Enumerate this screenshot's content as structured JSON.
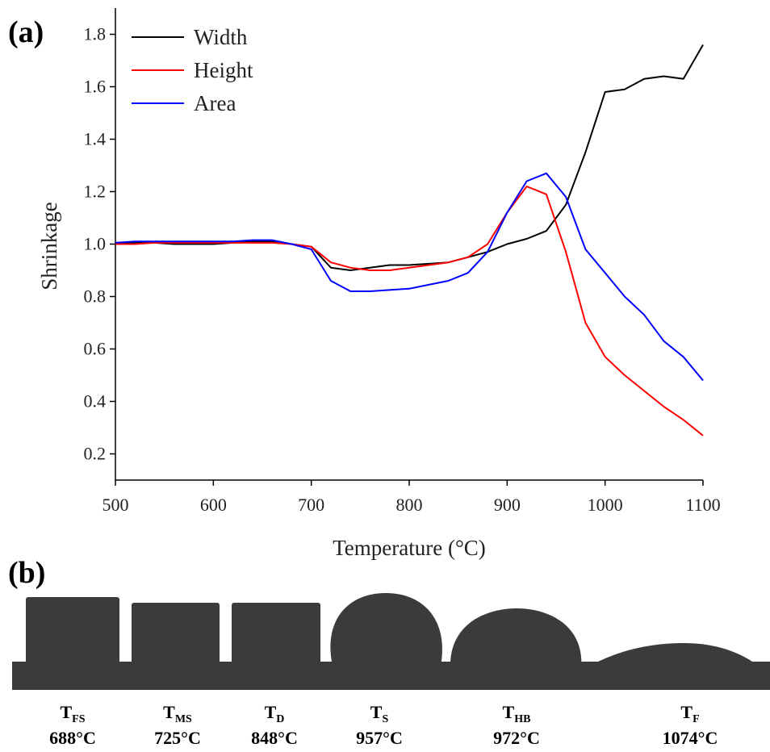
{
  "chart_data": {
    "type": "line",
    "panel_label": "(a)",
    "xlabel": "Temperature (°C)",
    "ylabel": "Shrinkage",
    "x": [
      500,
      520,
      540,
      560,
      580,
      600,
      620,
      640,
      660,
      680,
      700,
      720,
      740,
      760,
      780,
      800,
      820,
      840,
      860,
      880,
      900,
      920,
      940,
      960,
      980,
      1000,
      1020,
      1040,
      1060,
      1080,
      1100
    ],
    "series": [
      {
        "name": "Width",
        "color": "#000000",
        "values": [
          1.0,
          1.005,
          1.005,
          1.0,
          1.0,
          1.0,
          1.005,
          1.01,
          1.01,
          1.0,
          0.99,
          0.91,
          0.9,
          0.91,
          0.92,
          0.92,
          0.925,
          0.93,
          0.95,
          0.97,
          1.0,
          1.02,
          1.05,
          1.15,
          1.35,
          1.58,
          1.59,
          1.63,
          1.64,
          1.63,
          1.76
        ]
      },
      {
        "name": "Height",
        "color": "#ff0000",
        "values": [
          1.0,
          1.0,
          1.005,
          1.005,
          1.005,
          1.005,
          1.005,
          1.005,
          1.005,
          1.0,
          0.99,
          0.93,
          0.91,
          0.9,
          0.9,
          0.91,
          0.92,
          0.93,
          0.95,
          1.0,
          1.12,
          1.22,
          1.19,
          0.97,
          0.7,
          0.57,
          0.5,
          0.44,
          0.38,
          0.33,
          0.27
        ]
      },
      {
        "name": "Area",
        "color": "#0000ff",
        "values": [
          1.005,
          1.01,
          1.01,
          1.01,
          1.01,
          1.01,
          1.01,
          1.015,
          1.015,
          1.0,
          0.98,
          0.86,
          0.82,
          0.82,
          0.825,
          0.83,
          0.845,
          0.86,
          0.89,
          0.97,
          1.12,
          1.24,
          1.27,
          1.18,
          0.98,
          0.89,
          0.8,
          0.73,
          0.63,
          0.57,
          0.48
        ]
      }
    ],
    "xlim": [
      500,
      1100
    ],
    "xticks": [
      500,
      600,
      700,
      800,
      900,
      1000,
      1100
    ],
    "ylim": [
      0.1,
      1.9
    ],
    "yticks": [
      0.2,
      0.4,
      0.6,
      0.8,
      {
        "value": 1,
        "label": "1.0"
      },
      1.2,
      1.4,
      1.6,
      1.8
    ],
    "grid": false,
    "legend": "upper left"
  },
  "specimens": {
    "panel_label": "(b)",
    "items": [
      {
        "label": "T",
        "subscript": "FS",
        "temperature": "688°C"
      },
      {
        "label": "T",
        "subscript": "MS",
        "temperature": "725°C"
      },
      {
        "label": "T",
        "subscript": "D",
        "temperature": "848°C"
      },
      {
        "label": "T",
        "subscript": "S",
        "temperature": "957°C"
      },
      {
        "label": "T",
        "subscript": "HB",
        "temperature": "972°C"
      },
      {
        "label": "T",
        "subscript": "F",
        "temperature": "1074°C"
      }
    ]
  }
}
